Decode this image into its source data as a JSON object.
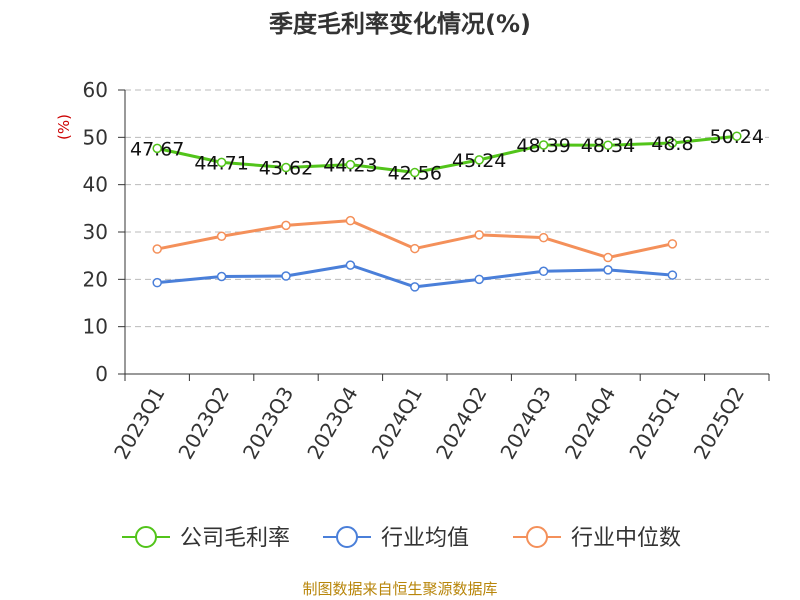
{
  "chart_data": {
    "type": "line",
    "title": "季度毛利率变化情况(%)",
    "ylabel": "(%)",
    "xlabel": "",
    "ylim": [
      0,
      60
    ],
    "yticks": [
      0,
      10,
      20,
      30,
      40,
      50,
      60
    ],
    "grid": "horizontal dashed",
    "legend_position": "bottom",
    "categories": [
      "2023Q1",
      "2023Q2",
      "2023Q3",
      "2023Q4",
      "2024Q1",
      "2024Q2",
      "2024Q3",
      "2024Q4",
      "2025Q1",
      "2025Q2"
    ],
    "series": [
      {
        "name": "公司毛利率",
        "color": "#52c41a",
        "values": [
          47.67,
          44.71,
          43.62,
          44.23,
          42.56,
          45.24,
          48.39,
          48.34,
          48.8,
          50.24
        ],
        "data_labels": [
          "47.67",
          "44.71",
          "43.62",
          "44.23",
          "42.56",
          "45.24",
          "48.39",
          "48.34",
          "48.8",
          "50.24"
        ]
      },
      {
        "name": "行业均值",
        "color": "#4a7fd9",
        "values": [
          19.3,
          20.6,
          20.7,
          23.0,
          18.4,
          20.0,
          21.7,
          22.0,
          20.9,
          null
        ]
      },
      {
        "name": "行业中位数",
        "color": "#f4905a",
        "values": [
          26.4,
          29.1,
          31.4,
          32.4,
          26.5,
          29.4,
          28.8,
          24.6,
          27.5,
          null
        ]
      }
    ],
    "source": "制图数据来自恒生聚源数据库"
  }
}
